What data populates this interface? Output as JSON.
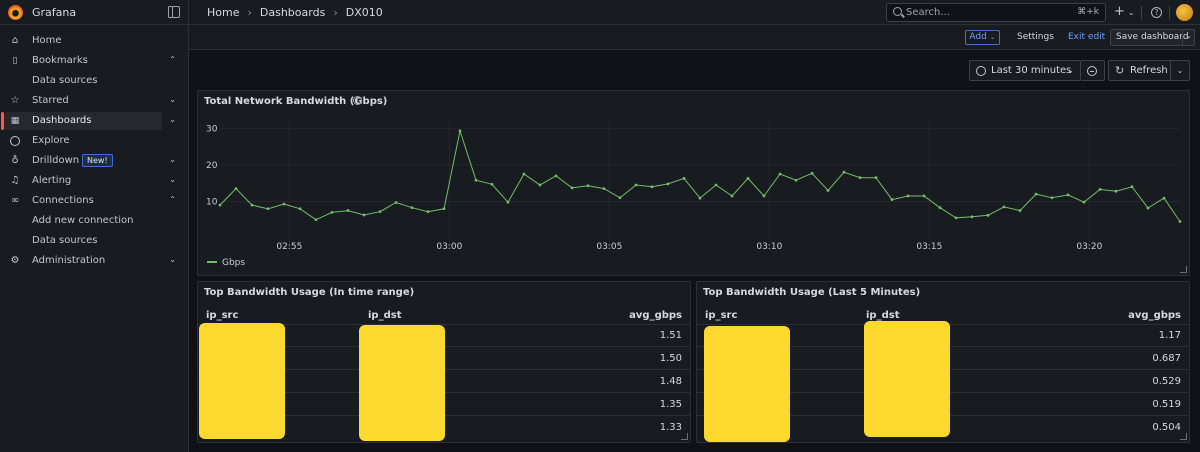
{
  "app": {
    "name": "Grafana"
  },
  "breadcrumbs": [
    "Home",
    "Dashboards",
    "DX010"
  ],
  "search": {
    "placeholder": "Search...",
    "shortcut": "⌘+k"
  },
  "topbar": {
    "plus": "+",
    "help": "?"
  },
  "sidebar": {
    "items": [
      {
        "label": "Home",
        "icon": "home-icon"
      },
      {
        "label": "Bookmarks",
        "icon": "bookmark-icon",
        "chevron": "⌃"
      },
      {
        "label": "Data sources",
        "sub": true
      },
      {
        "label": "Starred",
        "icon": "star-icon",
        "chevron": "⌄"
      },
      {
        "label": "Dashboards",
        "icon": "dashboards-icon",
        "chevron": "⌄",
        "active": true
      },
      {
        "label": "Explore",
        "icon": "compass-icon"
      },
      {
        "label": "Drilldown",
        "icon": "microphone-icon",
        "chevron": "⌄",
        "badge": "New!"
      },
      {
        "label": "Alerting",
        "icon": "bell-icon",
        "chevron": "⌄"
      },
      {
        "label": "Connections",
        "icon": "link-icon",
        "chevron": "⌃"
      },
      {
        "label": "Add new connection",
        "sub": true
      },
      {
        "label": "Data sources",
        "sub": true
      },
      {
        "label": "Administration",
        "icon": "gear-icon",
        "chevron": "⌄"
      }
    ]
  },
  "editbar": {
    "add": "Add",
    "settings": "Settings",
    "exit": "Exit edit",
    "save": "Save dashboard"
  },
  "controls": {
    "time_range": "Last 30 minutes",
    "refresh": "Refresh"
  },
  "panels": {
    "bandwidth": {
      "title": "Total Network Bandwidth (Gbps)",
      "legend": "Gbps"
    },
    "table_range": {
      "title": "Top Bandwidth Usage (In time range)",
      "columns": [
        "ip_src",
        "ip_dst",
        "avg_gbps"
      ],
      "rows": [
        "1.51",
        "1.50",
        "1.48",
        "1.35",
        "1.33"
      ]
    },
    "table_5min": {
      "title": "Top Bandwidth Usage (Last 5 Minutes)",
      "columns": [
        "ip_src",
        "ip_dst",
        "avg_gbps"
      ],
      "rows": [
        "1.17",
        "0.687",
        "0.529",
        "0.519",
        "0.504"
      ]
    }
  },
  "colors": {
    "series": "#73bf69",
    "accent": "#f55f3e",
    "link": "#6e9fff",
    "redaction": "#fdd92d"
  },
  "chart_data": {
    "type": "line",
    "title": "Total Network Bandwidth (Gbps)",
    "series": [
      {
        "name": "Gbps",
        "values": [
          9,
          13.5,
          9,
          8,
          9.3,
          8,
          5,
          7,
          7.5,
          6.3,
          7.2,
          9.7,
          8.3,
          7.2,
          8,
          29.3,
          15.8,
          14.7,
          9.8,
          17.5,
          14.5,
          17,
          13.7,
          14.3,
          13.5,
          11,
          14.5,
          14,
          14.8,
          16.3,
          10.9,
          14.5,
          11.5,
          16.3,
          11.5,
          17.5,
          15.8,
          17.7,
          13,
          18,
          16.5,
          16.5,
          10.5,
          11.5,
          11.5,
          8.3,
          5.5,
          5.8,
          6.2,
          8.5,
          7.5,
          12,
          11,
          11.8,
          9.8,
          13.3,
          12.8,
          14,
          8.2,
          10.9,
          4.5
        ]
      }
    ],
    "x_start_minute": 2.8333,
    "x_step_minutes": 0.5,
    "x_ticks": [
      "02:55",
      "03:00",
      "03:05",
      "03:10",
      "03:15",
      "03:20"
    ],
    "x_tick_minutes": [
      55,
      60,
      65,
      70,
      75,
      80
    ],
    "y_ticks": [
      10,
      20,
      30
    ],
    "ylim": [
      0,
      32
    ],
    "grid": true,
    "legend": "bottom-left"
  }
}
